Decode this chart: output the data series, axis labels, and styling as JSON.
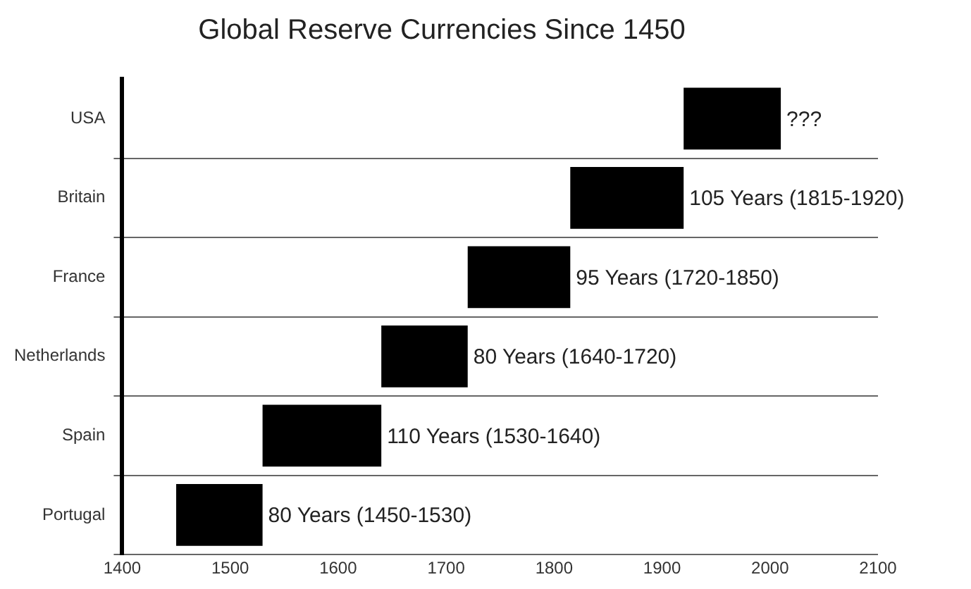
{
  "chart_data": {
    "type": "bar",
    "orientation": "horizontal",
    "title": "Global Reserve Currencies Since 1450",
    "categories": [
      "USA",
      "Britain",
      "France",
      "Netherlands",
      "Spain",
      "Portugal"
    ],
    "base": [
      1920,
      1815,
      1720,
      1640,
      1530,
      1450
    ],
    "values": [
      90,
      105,
      95,
      80,
      110,
      80
    ],
    "value_labels": [
      "???",
      "105 Years (1815-1920)",
      "95 Years (1720-1850)",
      "80 Years (1640-1720)",
      "110 Years (1530-1640)",
      "80 Years (1450-1530)"
    ],
    "color": "#000000",
    "xlim": [
      1400,
      2100
    ],
    "xticks": [
      1400,
      1500,
      1600,
      1700,
      1800,
      1900,
      2000,
      2100
    ],
    "grid": "y",
    "legend": false
  }
}
